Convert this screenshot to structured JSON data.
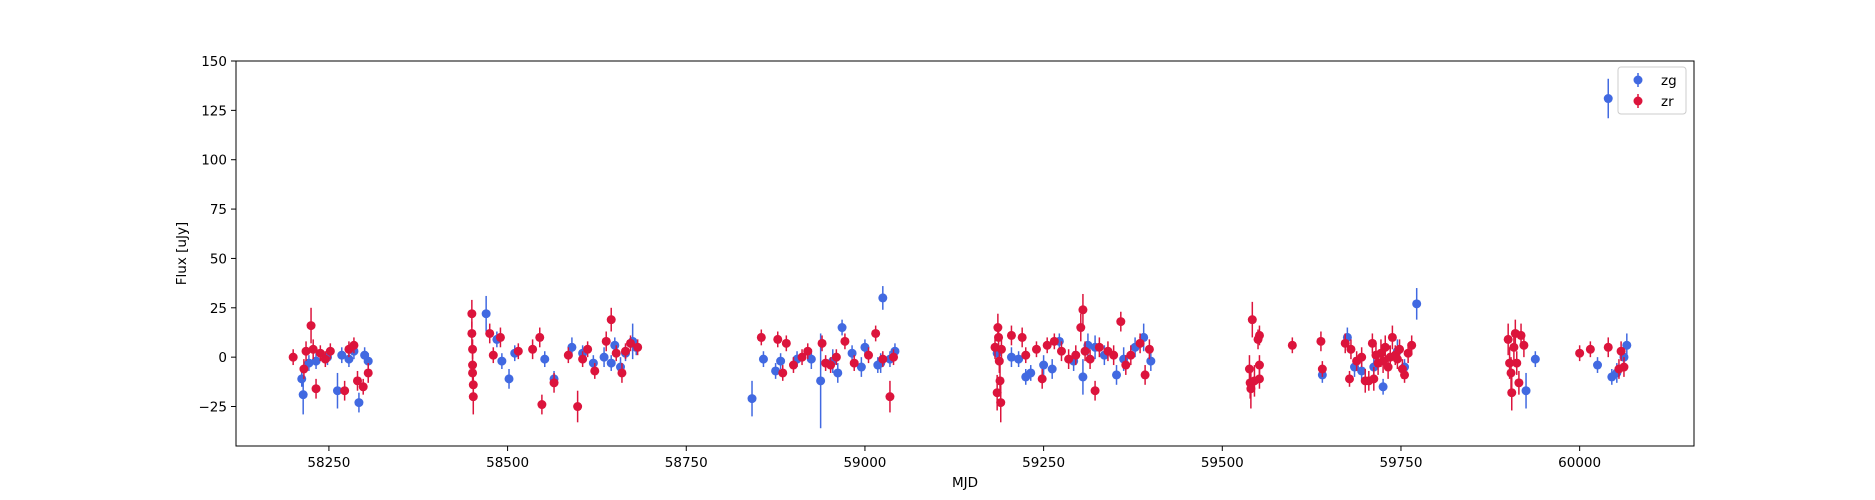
{
  "chart_data": {
    "type": "scatter",
    "title": "",
    "xlabel": "MJD",
    "ylabel": "Flux [uJy]",
    "xlim": [
      58120,
      60160
    ],
    "ylim": [
      -45,
      150
    ],
    "xticks": [
      58250,
      58500,
      58750,
      59000,
      59250,
      59500,
      59750,
      60000
    ],
    "yticks": [
      -25,
      0,
      25,
      50,
      75,
      100,
      125,
      150
    ],
    "grid": false,
    "legend": "top-right",
    "series": [
      {
        "name": "zg",
        "color": "#4169e1",
        "points": [
          [
            58212,
            -11,
            4
          ],
          [
            58214,
            -19,
            10
          ],
          [
            58222,
            -3,
            4
          ],
          [
            58232,
            -2,
            4
          ],
          [
            58248,
            0,
            4
          ],
          [
            58262,
            -17,
            9
          ],
          [
            58268,
            1,
            4
          ],
          [
            58278,
            -1,
            4
          ],
          [
            58285,
            3,
            4
          ],
          [
            58292,
            -23,
            5
          ],
          [
            58300,
            1,
            4
          ],
          [
            58305,
            -2,
            4
          ],
          [
            58470,
            22,
            9
          ],
          [
            58485,
            9,
            4
          ],
          [
            58492,
            -2,
            4
          ],
          [
            58502,
            -11,
            5
          ],
          [
            58510,
            2,
            4
          ],
          [
            58552,
            -1,
            4
          ],
          [
            58565,
            -11,
            4
          ],
          [
            58590,
            5,
            5
          ],
          [
            58605,
            2,
            4
          ],
          [
            58620,
            -3,
            4
          ],
          [
            58635,
            0,
            5
          ],
          [
            58645,
            -3,
            4
          ],
          [
            58650,
            6,
            4
          ],
          [
            58658,
            -5,
            5
          ],
          [
            58665,
            2,
            4
          ],
          [
            58675,
            8,
            9
          ],
          [
            58680,
            5,
            4
          ],
          [
            58842,
            -21,
            9
          ],
          [
            58858,
            -1,
            4
          ],
          [
            58875,
            -7,
            4
          ],
          [
            58882,
            -2,
            4
          ],
          [
            58905,
            -1,
            4
          ],
          [
            58925,
            -1,
            5
          ],
          [
            58938,
            -12,
            24
          ],
          [
            58955,
            -2,
            6
          ],
          [
            58962,
            -8,
            5
          ],
          [
            58968,
            15,
            4
          ],
          [
            58982,
            2,
            4
          ],
          [
            58995,
            -5,
            5
          ],
          [
            59000,
            5,
            4
          ],
          [
            59018,
            -4,
            4
          ],
          [
            59022,
            -3,
            5
          ],
          [
            59025,
            30,
            6
          ],
          [
            59035,
            -1,
            4
          ],
          [
            59042,
            3,
            4
          ],
          [
            59185,
            2,
            5
          ],
          [
            59205,
            0,
            5
          ],
          [
            59215,
            -1,
            4
          ],
          [
            59225,
            -10,
            4
          ],
          [
            59232,
            -8,
            4
          ],
          [
            59250,
            -4,
            5
          ],
          [
            59262,
            -6,
            5
          ],
          [
            59272,
            8,
            4
          ],
          [
            59292,
            -2,
            5
          ],
          [
            59305,
            -10,
            9
          ],
          [
            59312,
            6,
            6
          ],
          [
            59322,
            5,
            6
          ],
          [
            59335,
            1,
            5
          ],
          [
            59352,
            -9,
            5
          ],
          [
            59362,
            -1,
            6
          ],
          [
            59378,
            5,
            5
          ],
          [
            59390,
            10,
            7
          ],
          [
            59400,
            -2,
            5
          ],
          [
            59640,
            -9,
            4
          ],
          [
            59675,
            10,
            5
          ],
          [
            59685,
            -5,
            5
          ],
          [
            59695,
            -7,
            5
          ],
          [
            59712,
            -5,
            5
          ],
          [
            59725,
            -15,
            4
          ],
          [
            59745,
            3,
            6
          ],
          [
            59755,
            -5,
            4
          ],
          [
            59772,
            27,
            8
          ],
          [
            59938,
            -1,
            4
          ],
          [
            59925,
            -17,
            9
          ],
          [
            60025,
            -4,
            4
          ],
          [
            60045,
            -10,
            4
          ],
          [
            60052,
            -8,
            5
          ],
          [
            60062,
            0,
            5
          ],
          [
            60066,
            6,
            6
          ],
          [
            60040,
            131,
            10
          ]
        ]
      },
      {
        "name": "zr",
        "color": "#dc143c",
        "points": [
          [
            58200,
            0,
            4
          ],
          [
            58215,
            -6,
            5
          ],
          [
            58218,
            3,
            5
          ],
          [
            58225,
            16,
            9
          ],
          [
            58228,
            4,
            5
          ],
          [
            58232,
            -16,
            5
          ],
          [
            58238,
            2,
            4
          ],
          [
            58245,
            -1,
            4
          ],
          [
            58252,
            3,
            4
          ],
          [
            58272,
            -17,
            5
          ],
          [
            58278,
            4,
            4
          ],
          [
            58285,
            6,
            4
          ],
          [
            58290,
            -12,
            5
          ],
          [
            58298,
            -15,
            4
          ],
          [
            58305,
            -8,
            5
          ],
          [
            58450,
            22,
            7
          ],
          [
            58450,
            12,
            6
          ],
          [
            58451,
            4,
            5
          ],
          [
            58451,
            -4,
            6
          ],
          [
            58451,
            -8,
            6
          ],
          [
            58452,
            -14,
            6
          ],
          [
            58452,
            -20,
            9
          ],
          [
            58475,
            12,
            5
          ],
          [
            58480,
            1,
            4
          ],
          [
            58490,
            10,
            5
          ],
          [
            58515,
            3,
            4
          ],
          [
            58535,
            4,
            5
          ],
          [
            58545,
            10,
            5
          ],
          [
            58548,
            -24,
            5
          ],
          [
            58565,
            -13,
            5
          ],
          [
            58585,
            1,
            4
          ],
          [
            58598,
            -25,
            8
          ],
          [
            58605,
            -1,
            4
          ],
          [
            58612,
            4,
            4
          ],
          [
            58622,
            -7,
            4
          ],
          [
            58638,
            8,
            5
          ],
          [
            58645,
            19,
            6
          ],
          [
            58652,
            2,
            4
          ],
          [
            58660,
            -8,
            5
          ],
          [
            58665,
            3,
            4
          ],
          [
            58672,
            7,
            4
          ],
          [
            58682,
            5,
            4
          ],
          [
            58855,
            10,
            4
          ],
          [
            58878,
            9,
            4
          ],
          [
            58885,
            -8,
            4
          ],
          [
            58890,
            7,
            4
          ],
          [
            58900,
            -4,
            4
          ],
          [
            58912,
            0,
            4
          ],
          [
            58920,
            3,
            4
          ],
          [
            58940,
            7,
            4
          ],
          [
            58945,
            -3,
            4
          ],
          [
            58952,
            -4,
            4
          ],
          [
            58960,
            0,
            4
          ],
          [
            58972,
            8,
            4
          ],
          [
            58985,
            -3,
            4
          ],
          [
            59005,
            1,
            4
          ],
          [
            59015,
            12,
            4
          ],
          [
            59025,
            -1,
            4
          ],
          [
            59035,
            -20,
            8
          ],
          [
            59040,
            0,
            4
          ],
          [
            59182,
            5,
            6
          ],
          [
            59185,
            -18,
            9
          ],
          [
            59186,
            15,
            7
          ],
          [
            59187,
            10,
            6
          ],
          [
            59188,
            -2,
            6
          ],
          [
            59189,
            -12,
            8
          ],
          [
            59190,
            -23,
            10
          ],
          [
            59191,
            4,
            6
          ],
          [
            59205,
            11,
            5
          ],
          [
            59220,
            10,
            5
          ],
          [
            59225,
            1,
            4
          ],
          [
            59240,
            4,
            4
          ],
          [
            59248,
            -11,
            5
          ],
          [
            59255,
            6,
            4
          ],
          [
            59265,
            8,
            4
          ],
          [
            59275,
            3,
            5
          ],
          [
            59285,
            -1,
            5
          ],
          [
            59295,
            1,
            5
          ],
          [
            59302,
            15,
            7
          ],
          [
            59305,
            24,
            8
          ],
          [
            59308,
            3,
            5
          ],
          [
            59315,
            -1,
            5
          ],
          [
            59322,
            -17,
            5
          ],
          [
            59328,
            5,
            5
          ],
          [
            59340,
            3,
            5
          ],
          [
            59348,
            1,
            5
          ],
          [
            59358,
            18,
            5
          ],
          [
            59365,
            -4,
            5
          ],
          [
            59372,
            1,
            5
          ],
          [
            59385,
            7,
            5
          ],
          [
            59392,
            -9,
            5
          ],
          [
            59398,
            4,
            5
          ],
          [
            59538,
            -6,
            7
          ],
          [
            59539,
            -13,
            8
          ],
          [
            59540,
            -16,
            10
          ],
          [
            59542,
            19,
            9
          ],
          [
            59545,
            -12,
            8
          ],
          [
            59550,
            9,
            5
          ],
          [
            59552,
            11,
            5
          ],
          [
            59552,
            -4,
            5
          ],
          [
            59552,
            -11,
            5
          ],
          [
            59598,
            6,
            4
          ],
          [
            59638,
            8,
            5
          ],
          [
            59640,
            -6,
            4
          ],
          [
            59672,
            7,
            5
          ],
          [
            59678,
            -11,
            4
          ],
          [
            59680,
            4,
            5
          ],
          [
            59688,
            -2,
            5
          ],
          [
            59695,
            0,
            5
          ],
          [
            59700,
            -12,
            6
          ],
          [
            59705,
            -12,
            5
          ],
          [
            59710,
            7,
            5
          ],
          [
            59712,
            -11,
            6
          ],
          [
            59715,
            1,
            6
          ],
          [
            59718,
            -3,
            6
          ],
          [
            59722,
            2,
            7
          ],
          [
            59725,
            -2,
            6
          ],
          [
            59728,
            5,
            6
          ],
          [
            59732,
            -5,
            6
          ],
          [
            59735,
            0,
            6
          ],
          [
            59738,
            10,
            6
          ],
          [
            59742,
            1,
            5
          ],
          [
            59745,
            -1,
            5
          ],
          [
            59748,
            4,
            5
          ],
          [
            59752,
            -6,
            5
          ],
          [
            59755,
            -9,
            4
          ],
          [
            59760,
            2,
            5
          ],
          [
            59765,
            6,
            5
          ],
          [
            59900,
            9,
            8
          ],
          [
            59902,
            -3,
            8
          ],
          [
            59904,
            -8,
            8
          ],
          [
            59905,
            -18,
            9
          ],
          [
            59908,
            5,
            7
          ],
          [
            59910,
            12,
            7
          ],
          [
            59912,
            -3,
            6
          ],
          [
            59915,
            -13,
            6
          ],
          [
            59918,
            11,
            6
          ],
          [
            59922,
            6,
            6
          ],
          [
            60000,
            2,
            4
          ],
          [
            60015,
            4,
            4
          ],
          [
            60040,
            5,
            5
          ],
          [
            60055,
            -6,
            5
          ],
          [
            60058,
            3,
            5
          ],
          [
            60062,
            -5,
            5
          ]
        ]
      }
    ]
  }
}
